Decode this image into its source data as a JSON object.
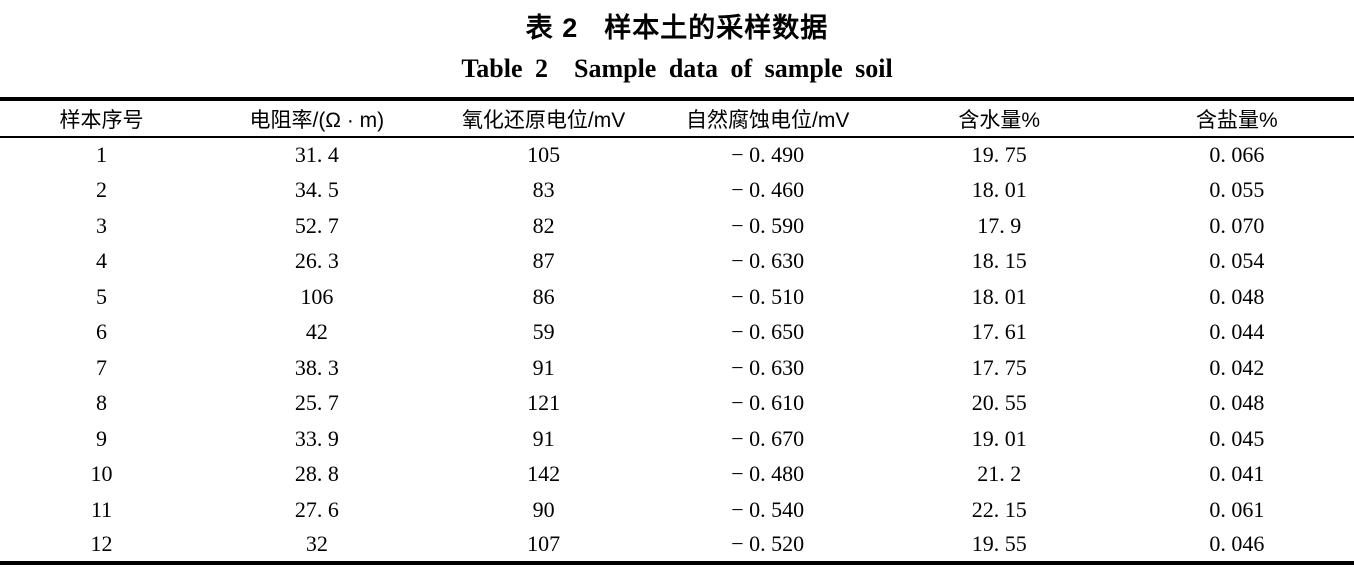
{
  "page": {
    "background": "#ffffff",
    "text_color": "#000000",
    "rule_color": "#000000"
  },
  "caption": {
    "zh": {
      "label": "表 2",
      "title": "样本土的采样数据"
    },
    "en": {
      "label": "Table 2",
      "title": "Sample data of sample soil"
    }
  },
  "table": {
    "columns": [
      {
        "key": "sample-no",
        "label": "样本序号"
      },
      {
        "key": "resistivity",
        "label": "电阻率/(Ω · m)"
      },
      {
        "key": "redox-potential",
        "label": "氧化还原电位/mV"
      },
      {
        "key": "natural-corrosion-potential",
        "label": "自然腐蚀电位/mV"
      },
      {
        "key": "water-content",
        "label": "含水量%"
      },
      {
        "key": "salt-content",
        "label": "含盐量%"
      }
    ],
    "rows": [
      [
        "1",
        "31. 4",
        "105",
        "− 0. 490",
        "19. 75",
        "0. 066"
      ],
      [
        "2",
        "34. 5",
        "83",
        "− 0. 460",
        "18. 01",
        "0. 055"
      ],
      [
        "3",
        "52. 7",
        "82",
        "− 0. 590",
        "17. 9",
        "0. 070"
      ],
      [
        "4",
        "26. 3",
        "87",
        "− 0. 630",
        "18. 15",
        "0. 054"
      ],
      [
        "5",
        "106",
        "86",
        "− 0. 510",
        "18. 01",
        "0. 048"
      ],
      [
        "6",
        "42",
        "59",
        "− 0. 650",
        "17. 61",
        "0. 044"
      ],
      [
        "7",
        "38. 3",
        "91",
        "− 0. 630",
        "17. 75",
        "0. 042"
      ],
      [
        "8",
        "25. 7",
        "121",
        "− 0. 610",
        "20. 55",
        "0. 048"
      ],
      [
        "9",
        "33. 9",
        "91",
        "− 0. 670",
        "19. 01",
        "0. 045"
      ],
      [
        "10",
        "28. 8",
        "142",
        "− 0. 480",
        "21. 2",
        "0. 041"
      ],
      [
        "11",
        "27. 6",
        "90",
        "− 0. 540",
        "22. 15",
        "0. 061"
      ],
      [
        "12",
        "32",
        "107",
        "− 0. 520",
        "19. 55",
        "0. 046"
      ]
    ]
  }
}
